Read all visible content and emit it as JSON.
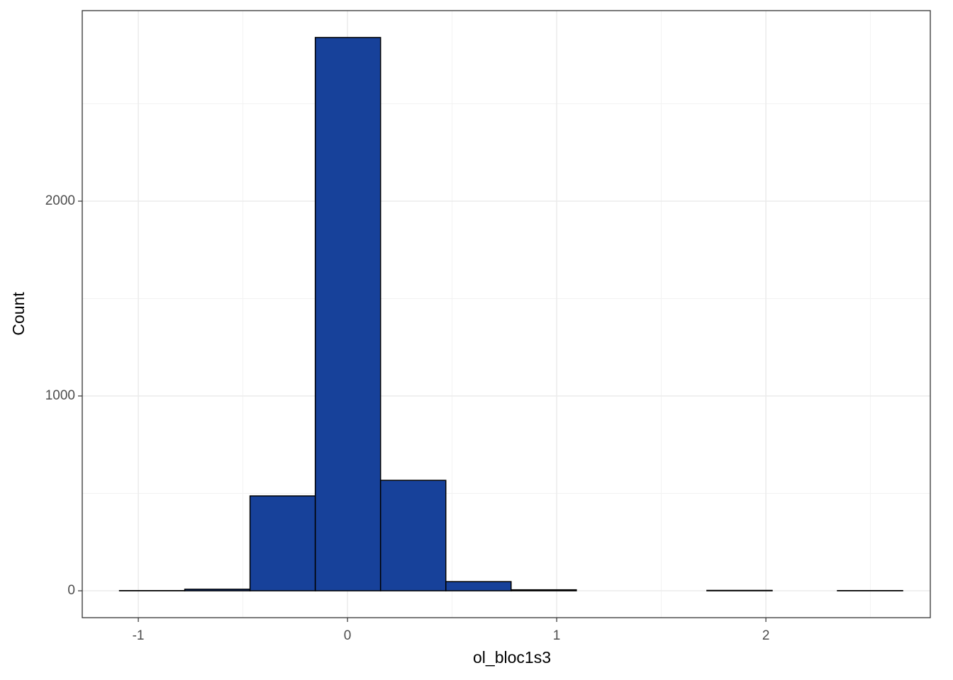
{
  "chart_data": {
    "type": "histogram",
    "x_label": "ol_bloc1s3",
    "y_label": "Count",
    "bins": [
      -1.09,
      -0.778,
      -0.466,
      -0.154,
      0.158,
      0.47,
      0.782,
      1.094,
      1.406,
      1.718,
      2.03,
      2.342,
      2.654
    ],
    "counts": [
      1,
      8,
      487,
      2840,
      567,
      47,
      5,
      0,
      0,
      2,
      0,
      1
    ],
    "color": "#17419a",
    "edgecolor": "#000000",
    "xlim": [
      -1.268,
      2.786
    ],
    "ylim": [
      -138,
      2978
    ],
    "xticks": [
      -1,
      0,
      1,
      2
    ],
    "yticks": [
      0,
      1000,
      2000
    ],
    "xminor": [
      -0.5,
      0.5,
      1.5,
      2.5
    ],
    "yminor": [
      500,
      1500,
      2500
    ],
    "grid": true
  }
}
